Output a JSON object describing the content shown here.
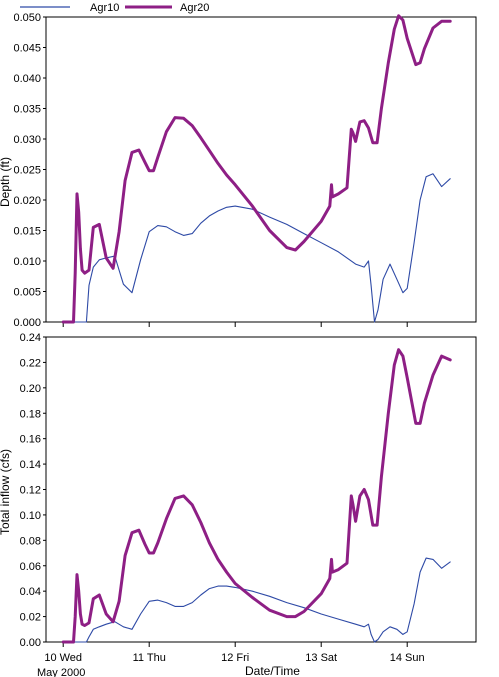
{
  "colors": {
    "agr10": "#2e4aa6",
    "agr20": "#8e1f85"
  },
  "legend": {
    "position": "top-left",
    "items": [
      "Agr10",
      "Agr20"
    ]
  },
  "x_axis": {
    "label": "Date/Time",
    "start_date": "May 2000",
    "ticks": [
      {
        "x": 10,
        "label": "10 Wed"
      },
      {
        "x": 11,
        "label": "11 Thu"
      },
      {
        "x": 12,
        "label": "12 Fri"
      },
      {
        "x": 13,
        "label": "13 Sat"
      },
      {
        "x": 14,
        "label": "14 Sun"
      }
    ]
  },
  "chart_data": [
    {
      "type": "line",
      "ylabel": "Depth (ft)",
      "xlim": [
        9.8,
        14.8
      ],
      "ylim": [
        0,
        0.05
      ],
      "y_ticks": [
        "0.000",
        "0.005",
        "0.010",
        "0.015",
        "0.020",
        "0.025",
        "0.030",
        "0.035",
        "0.040",
        "0.045",
        "0.050"
      ],
      "series": [
        {
          "name": "Agr10",
          "x": [
            10.0,
            10.22,
            10.27,
            10.3,
            10.35,
            10.42,
            10.5,
            10.6,
            10.7,
            10.8,
            10.9,
            11.0,
            11.1,
            11.2,
            11.3,
            11.4,
            11.5,
            11.6,
            11.7,
            11.8,
            11.9,
            12.0,
            12.2,
            12.4,
            12.6,
            12.8,
            13.0,
            13.2,
            13.4,
            13.5,
            13.55,
            13.58,
            13.62,
            13.66,
            13.72,
            13.8,
            13.88,
            13.95,
            14.0,
            14.08,
            14.15,
            14.22,
            14.3,
            14.4,
            14.5
          ],
          "y": [
            0.0,
            0.0,
            0.0,
            0.006,
            0.009,
            0.0102,
            0.0105,
            0.0108,
            0.0062,
            0.0048,
            0.0102,
            0.0148,
            0.0158,
            0.0156,
            0.0148,
            0.0142,
            0.0145,
            0.0162,
            0.0174,
            0.0182,
            0.0188,
            0.019,
            0.0185,
            0.0172,
            0.016,
            0.0145,
            0.013,
            0.0115,
            0.0095,
            0.009,
            0.01,
            0.006,
            0.0,
            0.002,
            0.007,
            0.0095,
            0.007,
            0.0048,
            0.0055,
            0.013,
            0.02,
            0.0238,
            0.0243,
            0.0222,
            0.0235
          ]
        },
        {
          "name": "Agr20",
          "x": [
            10.0,
            10.12,
            10.14,
            10.16,
            10.18,
            10.2,
            10.22,
            10.25,
            10.3,
            10.35,
            10.42,
            10.5,
            10.58,
            10.65,
            10.72,
            10.8,
            10.88,
            10.95,
            11.0,
            11.05,
            11.1,
            11.2,
            11.3,
            11.4,
            11.5,
            11.6,
            11.7,
            11.8,
            11.9,
            12.0,
            12.2,
            12.4,
            12.6,
            12.7,
            12.8,
            13.0,
            13.1,
            13.12,
            13.13,
            13.2,
            13.3,
            13.35,
            13.37,
            13.4,
            13.45,
            13.5,
            13.55,
            13.6,
            13.65,
            13.7,
            13.78,
            13.85,
            13.9,
            13.95,
            14.0,
            14.1,
            14.15,
            14.2,
            14.3,
            14.4,
            14.5
          ],
          "y": [
            0.0,
            0.0,
            0.008,
            0.021,
            0.018,
            0.012,
            0.0085,
            0.008,
            0.0085,
            0.0155,
            0.016,
            0.0105,
            0.0088,
            0.0148,
            0.0232,
            0.0278,
            0.0282,
            0.0262,
            0.0248,
            0.0248,
            0.027,
            0.0312,
            0.0335,
            0.0334,
            0.0322,
            0.0302,
            0.0281,
            0.026,
            0.0241,
            0.0225,
            0.019,
            0.015,
            0.0122,
            0.0118,
            0.0132,
            0.0165,
            0.019,
            0.0225,
            0.0205,
            0.021,
            0.022,
            0.0316,
            0.031,
            0.0296,
            0.0328,
            0.033,
            0.0318,
            0.0294,
            0.0294,
            0.035,
            0.0425,
            0.048,
            0.0502,
            0.0495,
            0.0465,
            0.0422,
            0.0425,
            0.0448,
            0.0482,
            0.0493,
            0.0493
          ]
        }
      ]
    },
    {
      "type": "line",
      "ylabel": "Total inflow (cfs)",
      "xlim": [
        9.8,
        14.8
      ],
      "ylim": [
        0,
        0.24
      ],
      "y_ticks": [
        "0.00",
        "0.02",
        "0.04",
        "0.06",
        "0.08",
        "0.10",
        "0.12",
        "0.14",
        "0.16",
        "0.18",
        "0.20",
        "0.22",
        "0.24"
      ],
      "series": [
        {
          "name": "Agr10",
          "x": [
            10.0,
            10.22,
            10.27,
            10.3,
            10.35,
            10.42,
            10.5,
            10.6,
            10.7,
            10.8,
            10.9,
            11.0,
            11.1,
            11.2,
            11.3,
            11.4,
            11.5,
            11.6,
            11.7,
            11.8,
            11.9,
            12.0,
            12.2,
            12.4,
            12.6,
            12.8,
            13.0,
            13.2,
            13.4,
            13.5,
            13.55,
            13.58,
            13.62,
            13.66,
            13.72,
            13.8,
            13.88,
            13.95,
            14.0,
            14.08,
            14.15,
            14.22,
            14.3,
            14.4,
            14.5
          ],
          "y": [
            0.0,
            0.0,
            0.0,
            0.004,
            0.01,
            0.012,
            0.014,
            0.016,
            0.012,
            0.01,
            0.022,
            0.032,
            0.033,
            0.031,
            0.028,
            0.028,
            0.031,
            0.037,
            0.042,
            0.044,
            0.044,
            0.043,
            0.04,
            0.036,
            0.031,
            0.027,
            0.022,
            0.018,
            0.014,
            0.012,
            0.014,
            0.006,
            0.0,
            0.002,
            0.008,
            0.012,
            0.01,
            0.006,
            0.008,
            0.03,
            0.055,
            0.066,
            0.065,
            0.058,
            0.063
          ]
        },
        {
          "name": "Agr20",
          "x": [
            10.0,
            10.12,
            10.14,
            10.16,
            10.18,
            10.2,
            10.22,
            10.25,
            10.3,
            10.35,
            10.42,
            10.5,
            10.58,
            10.65,
            10.72,
            10.8,
            10.88,
            10.95,
            11.0,
            11.05,
            11.1,
            11.2,
            11.3,
            11.4,
            11.5,
            11.6,
            11.7,
            11.8,
            11.9,
            12.0,
            12.2,
            12.4,
            12.6,
            12.7,
            12.8,
            13.0,
            13.1,
            13.12,
            13.13,
            13.2,
            13.3,
            13.35,
            13.37,
            13.4,
            13.45,
            13.5,
            13.55,
            13.6,
            13.65,
            13.7,
            13.78,
            13.85,
            13.9,
            13.95,
            14.0,
            14.1,
            14.15,
            14.2,
            14.3,
            14.4,
            14.5
          ],
          "y": [
            0.0,
            0.0,
            0.02,
            0.053,
            0.04,
            0.022,
            0.014,
            0.013,
            0.015,
            0.034,
            0.037,
            0.022,
            0.016,
            0.032,
            0.068,
            0.086,
            0.088,
            0.077,
            0.07,
            0.07,
            0.078,
            0.097,
            0.113,
            0.115,
            0.108,
            0.094,
            0.078,
            0.065,
            0.055,
            0.046,
            0.035,
            0.025,
            0.02,
            0.02,
            0.024,
            0.038,
            0.05,
            0.065,
            0.055,
            0.057,
            0.062,
            0.115,
            0.108,
            0.095,
            0.115,
            0.12,
            0.112,
            0.092,
            0.092,
            0.13,
            0.18,
            0.218,
            0.23,
            0.225,
            0.208,
            0.172,
            0.172,
            0.188,
            0.21,
            0.225,
            0.222
          ]
        }
      ]
    }
  ]
}
